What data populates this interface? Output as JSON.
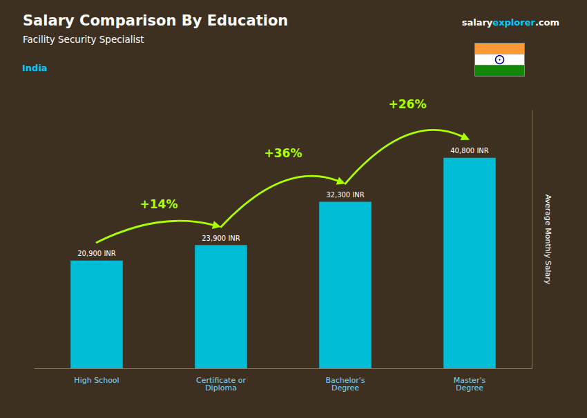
{
  "chart_data": {
    "type": "bar",
    "title": "Salary Comparison By Education",
    "subtitle": "Facility Security Specialist",
    "categories": [
      "High School",
      "Certificate or\nDiploma",
      "Bachelor's\nDegree",
      "Master's\nDegree"
    ],
    "values": [
      20900,
      23900,
      32300,
      40800
    ],
    "value_labels": [
      "20,900 INR",
      "23,900 INR",
      "32,300 INR",
      "40,800 INR"
    ],
    "data_labels": true,
    "color": "#00BCD4",
    "y_label": "Average Monthly Salary",
    "ylim": [
      0,
      50000
    ],
    "tick_labels": "x",
    "grid": false,
    "annotations": [
      {
        "text": "+14%",
        "between": [
          "High School",
          "Certificate or\nDiploma"
        ],
        "color": "#AAFF00"
      },
      {
        "text": "+36%",
        "between": [
          "Certificate or\nDiploma",
          "Bachelor's\nDegree"
        ],
        "color": "#AAFF00"
      },
      {
        "text": "+26%",
        "between": [
          "Bachelor's\nDegree",
          "Master's\nDegree"
        ],
        "color": "#AAFF00"
      },
      {
        "text": "India",
        "color": "#00CCFF"
      },
      {
        "parts": [
          {
            "text": "salary",
            "color": "#ffffff"
          },
          {
            "text": "explorer",
            "color": "#00CCFF"
          },
          {
            "text": ".com",
            "color": "#ffffff"
          }
        ]
      }
    ]
  }
}
